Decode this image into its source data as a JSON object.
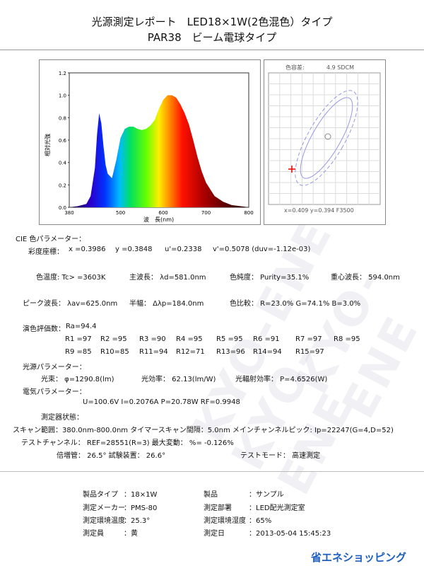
{
  "title": {
    "line1": "光源測定レポート　LED18×1W(2色混色）タイプ",
    "line2": "PAR38　ビーム電球タイプ"
  },
  "spectrum": {
    "ylabel": "相対光強",
    "xlabel": "波　長(nm)",
    "y_ticks": [
      "0.0",
      "0.2",
      "0.4",
      "0.6",
      "0.8",
      "1.0",
      "1.2"
    ],
    "x_ticks": [
      "380",
      "500",
      "600",
      "700",
      "800"
    ]
  },
  "chart_data": {
    "type": "area",
    "title": "",
    "xlabel": "波　長(nm)",
    "ylabel": "相対光強",
    "xlim": [
      380,
      800
    ],
    "ylim": [
      0,
      1.2
    ],
    "x": [
      380,
      400,
      420,
      430,
      440,
      445,
      450,
      455,
      460,
      465,
      470,
      480,
      490,
      500,
      510,
      520,
      530,
      540,
      550,
      560,
      570,
      580,
      590,
      600,
      610,
      620,
      630,
      640,
      650,
      660,
      670,
      680,
      690,
      700,
      720,
      740,
      760,
      780,
      800
    ],
    "values": [
      0,
      0.01,
      0.03,
      0.1,
      0.35,
      0.65,
      0.84,
      0.75,
      0.55,
      0.38,
      0.3,
      0.26,
      0.42,
      0.62,
      0.7,
      0.72,
      0.72,
      0.7,
      0.69,
      0.7,
      0.73,
      0.78,
      0.88,
      0.96,
      1.0,
      1.0,
      0.98,
      0.92,
      0.84,
      0.74,
      0.6,
      0.45,
      0.32,
      0.22,
      0.1,
      0.05,
      0.02,
      0.01,
      0.0
    ]
  },
  "cie": {
    "header_label": "色容差:",
    "header_value": "4.9 SDCM",
    "footer": "x=0.409 y=0.394 F3500"
  },
  "params": {
    "cie_title": "CIE 色パラメーター：",
    "coord_label": "彩度座標：",
    "x": "x =0.3986",
    "y": "y =0.3848",
    "u": "u'=0.2338",
    "v": "v'=0.5078  (duv=-1.12e-03)",
    "cct": "色温度: Tc> =3603K",
    "dom_wl": "主波長：  λd=581.0nm",
    "purity": "色純度：  Purity=35.1%",
    "centroid": "重心波長：   594.0nm",
    "peak": "ピーク波長：  λav=625.0nm",
    "hw": "半幅：     Δλp=184.0nm",
    "ratio": "色比較：   R=23.0%  G=74.1%  B=3.0%",
    "cri_title": "演色評価数：",
    "ra": "Ra=94.4",
    "ri_row1": [
      "R1  =97",
      "R2  =95",
      "R3  =90",
      "R4  =95",
      "R5  =95",
      "R6  =91",
      "R7  =97",
      "R8  =95"
    ],
    "ri_row2": [
      "R9  =85",
      "R10=85",
      "R11=94",
      "R12=71",
      "R13=96",
      "R14=94",
      "R15=97"
    ],
    "photo_title": "光源パラメーター：",
    "flux": "光束：  φ=1290.8(lm)",
    "efficacy": "光効率：   62.13(lm/W)",
    "rad_eff": "光輻射効率：   P=4.6526(W)",
    "elec_title": "電気パラメーター：",
    "elec": "U=100.6V      I=0.2076A    P=20.78W    RF=0.9948",
    "dev_title": "測定器状態：",
    "scan": "スキャン範囲：380.0nm-800.0nm    タイマースキャン間隔：5.0nm   メインチャンネルピック: Ip=22247(G=4,D=52)",
    "test_ch": "テストチャンネル：    REF=28551(R=3)      最大変動：     %= -0.126%",
    "mult": "倍増管：     26.5°     試験装置：   26.6°",
    "test_mode": "テストモード：     高速測定"
  },
  "info": {
    "type_label": "製品タイプ",
    "type_value": "：18×1W",
    "product_label": "製品",
    "product_value": "：サンプル",
    "maker_label": "測定メーカー",
    "maker_value": "：PMS-80",
    "dept_label": "測定部署",
    "dept_value": "：LED配光測定室",
    "temp_label": "測定環境温度",
    "temp_value": "：25.3°",
    "hum_label": "測定環境湿度",
    "hum_value": "：65%",
    "person_label": "測定員",
    "person_value": "：黄",
    "date_label": "測定日",
    "date_value": "：2013-05-04   15:45:23"
  },
  "brand": "省エネショッピング",
  "watermark": "KYO-ENE"
}
